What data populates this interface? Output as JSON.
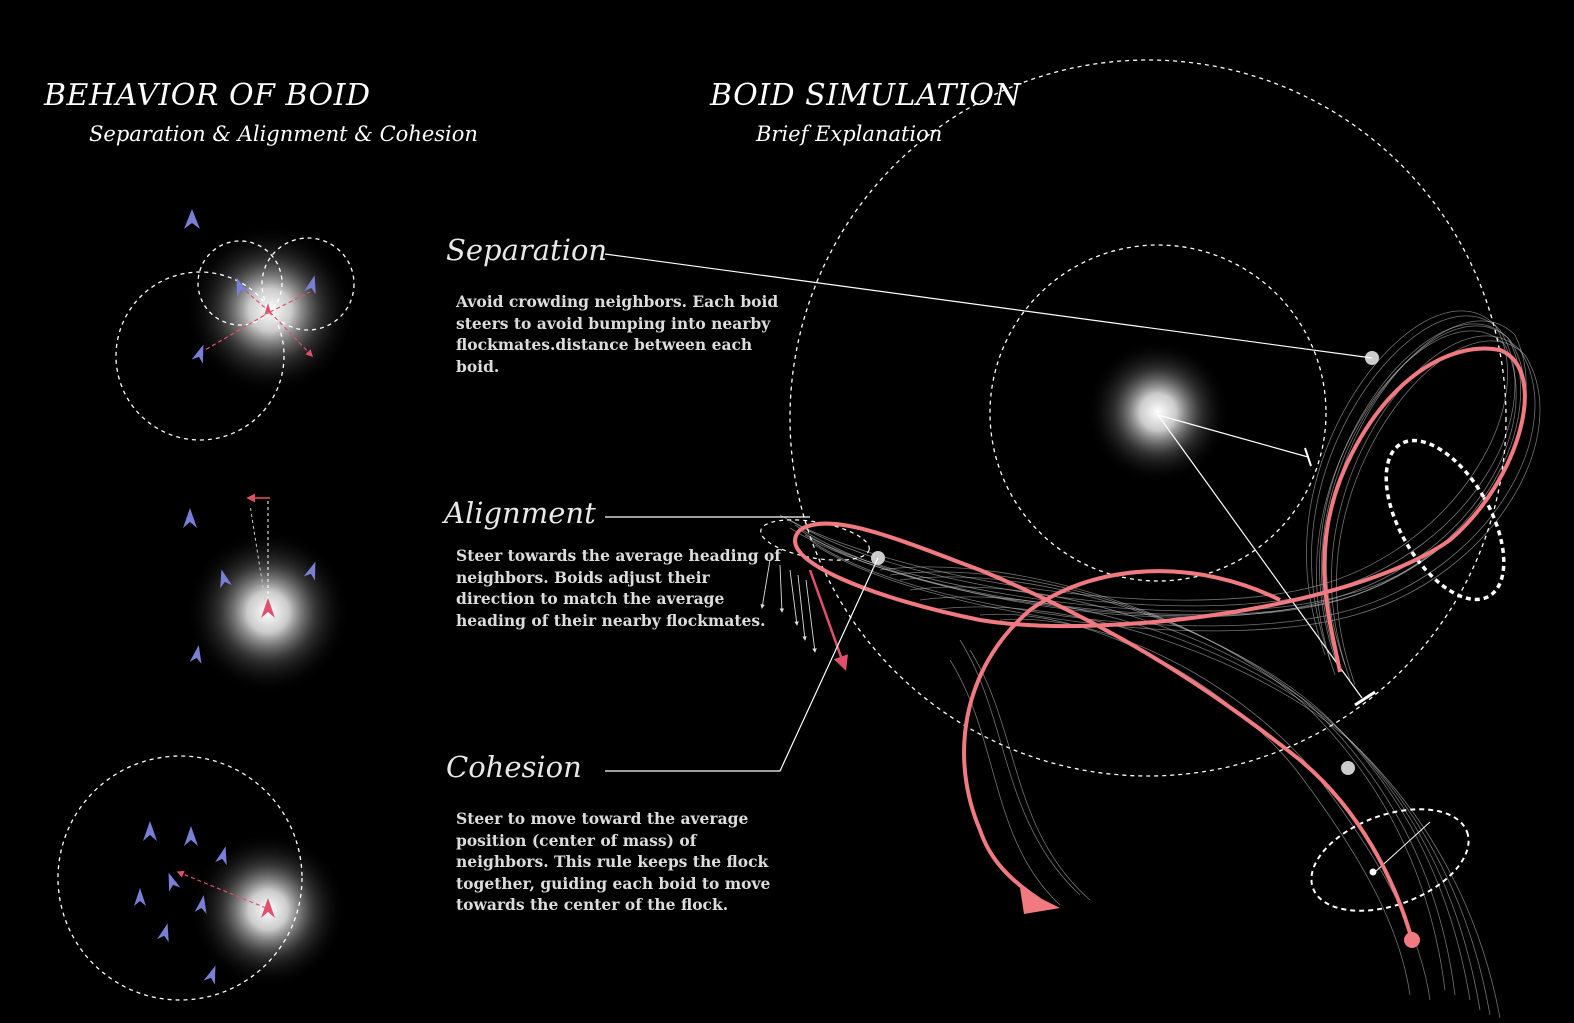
{
  "left_panel": {
    "title": "BEHAVIOR OF BOID",
    "subtitle": "Separation & Alignment & Cohesion"
  },
  "right_panel": {
    "title": "BOID SIMULATION",
    "subtitle": "Brief Explanation"
  },
  "rules": [
    {
      "heading": "Separation",
      "description": "Avoid crowding neighbors. Each boid steers to avoid bumping into nearby flockmates.distance between each boid."
    },
    {
      "heading": "Alignment",
      "description": "Steer towards the average heading of neighbors. Boids adjust their direction to match the average heading of their nearby flockmates."
    },
    {
      "heading": "Cohesion",
      "description": "Steer to move toward the average position (center of mass) of neighbors. This rule keeps the flock together, guiding each boid to move towards the center of the flock."
    }
  ],
  "colors": {
    "background": "#000000",
    "boid": "#7a7fd6",
    "focus_boid": "#e0506a",
    "path": "#f07a80",
    "trail": "#cfcfcf",
    "text": "#ffffff"
  }
}
